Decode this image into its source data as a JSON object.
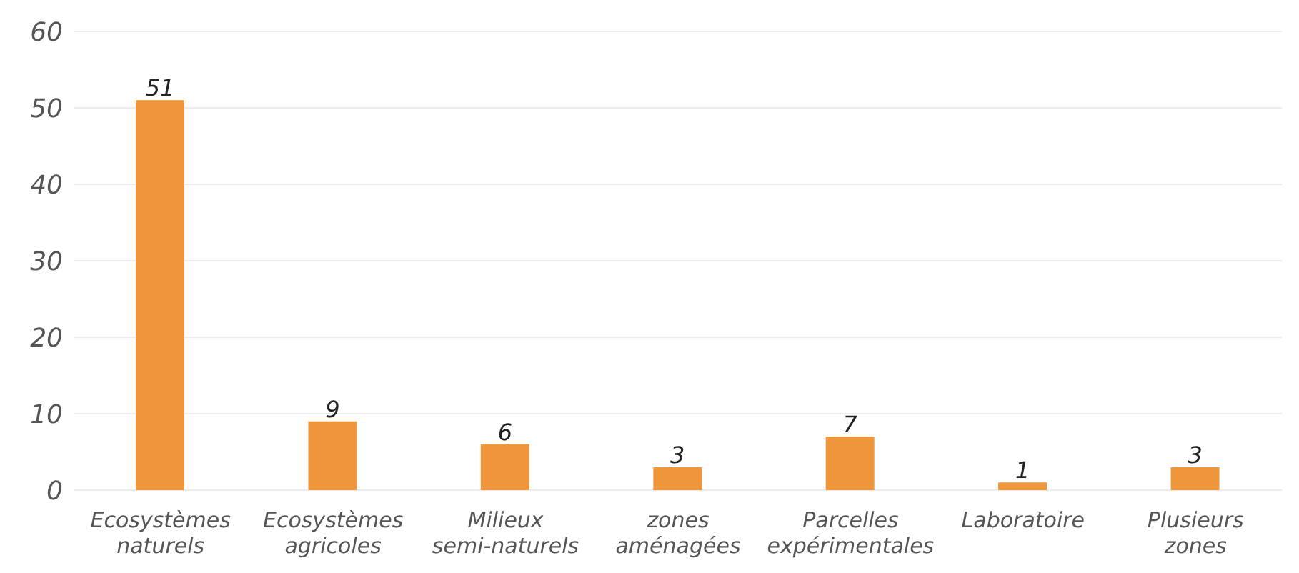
{
  "chart_data": {
    "type": "bar",
    "categories": [
      "Ecosystèmes naturels",
      "Ecosystèmes agricoles",
      "Milieux semi-naturels",
      "zones aménagées",
      "Parcelles expérimentales",
      "Laboratoire",
      "Plusieurs zones"
    ],
    "values": [
      51,
      9,
      6,
      3,
      7,
      1,
      3
    ],
    "color": "#f0963a",
    "ylim": [
      0,
      60
    ],
    "yticks": [
      0,
      10,
      20,
      30,
      40,
      50,
      60
    ],
    "grid": "y",
    "data_labels": true
  }
}
